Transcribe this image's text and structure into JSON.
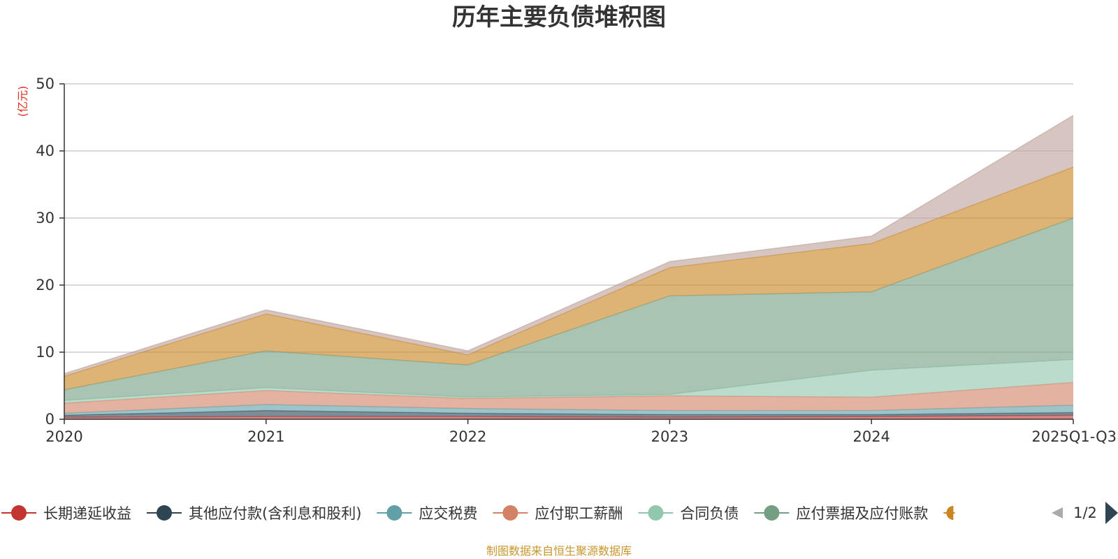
{
  "chart_data": {
    "type": "area",
    "stacked": true,
    "title": "历年主要负债堆积图",
    "unit_label": "(亿元)",
    "categories": [
      "2020",
      "2021",
      "2022",
      "2023",
      "2024",
      "2025Q1-Q3"
    ],
    "ylim": [
      0,
      50
    ],
    "yticks": [
      0,
      10,
      20,
      30,
      40,
      50
    ],
    "grid": true,
    "legend_position": "bottom",
    "series": [
      {
        "name": "长期递延收益",
        "color": "#c23531",
        "values": [
          0.3,
          0.4,
          0.4,
          0.3,
          0.4,
          0.6
        ]
      },
      {
        "name": "其他应付款(含利息和股利)",
        "color": "#2f4554",
        "values": [
          0.3,
          0.9,
          0.5,
          0.4,
          0.3,
          0.4
        ]
      },
      {
        "name": "应交税费",
        "color": "#61a0a8",
        "values": [
          0.3,
          0.9,
          0.7,
          0.6,
          0.6,
          1.1
        ]
      },
      {
        "name": "应付职工薪酬",
        "color": "#d48265",
        "values": [
          1.5,
          2.1,
          1.5,
          2.2,
          2.0,
          3.4
        ]
      },
      {
        "name": "合同负债",
        "color": "#91c7ae",
        "values": [
          0.4,
          0.4,
          0.2,
          0.2,
          4.0,
          3.4
        ]
      },
      {
        "name": "应付票据及应付账款",
        "color": "#749f83",
        "values": [
          1.6,
          5.5,
          4.8,
          14.7,
          11.7,
          21.1
        ]
      },
      {
        "name": "",
        "color": "#ca8622",
        "values": [
          2.0,
          5.5,
          1.5,
          4.2,
          7.2,
          7.6
        ]
      },
      {
        "name": "",
        "color": "#bda29a",
        "values": [
          0.4,
          0.6,
          0.6,
          0.9,
          1.1,
          7.7
        ]
      }
    ],
    "legend": {
      "page_indicator": "1/2"
    }
  },
  "footer": {
    "source": "制图数据来自恒生聚源数据库",
    "source_color": "#c8962e"
  }
}
